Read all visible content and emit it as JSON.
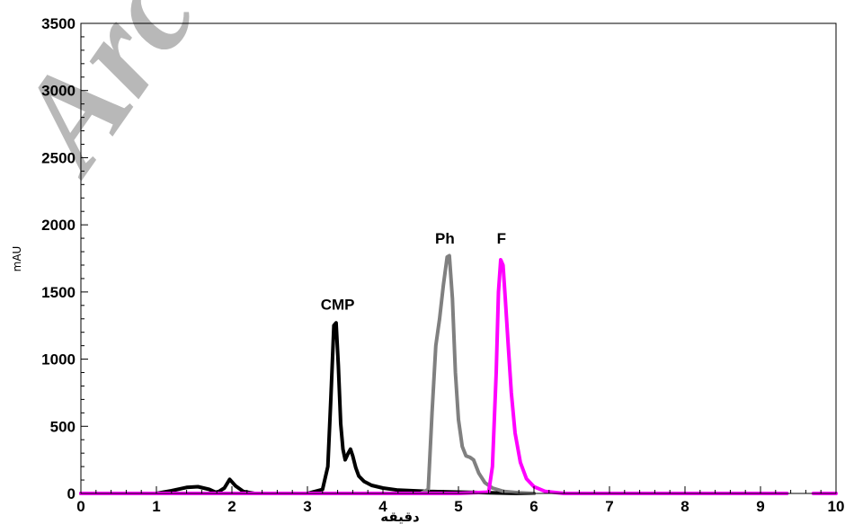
{
  "chart_data": {
    "type": "line",
    "xlabel": "دقیقه",
    "ylabel": "mAU",
    "xlim": [
      0,
      10
    ],
    "ylim": [
      0,
      3500
    ],
    "xticks": [
      "0",
      "1",
      "2",
      "3",
      "4",
      "5",
      "6",
      "7",
      "8",
      "9",
      "10"
    ],
    "yticks": [
      "0",
      "500",
      "1000",
      "1500",
      "2000",
      "2500",
      "3000",
      "3500"
    ],
    "grid": false,
    "watermark": "Arc",
    "annotations": [
      {
        "text": "CMP",
        "x": 3.4,
        "y": 1370
      },
      {
        "text": "Ph",
        "x": 4.82,
        "y": 1860
      },
      {
        "text": "F",
        "x": 5.57,
        "y": 1860
      }
    ],
    "series": [
      {
        "color": "#000000",
        "x": [
          0,
          1.0,
          1.2,
          1.4,
          1.55,
          1.7,
          1.8,
          1.9,
          1.97,
          2.05,
          2.15,
          2.3,
          2.6,
          3.0,
          3.2,
          3.27,
          3.31,
          3.35,
          3.38,
          3.41,
          3.44,
          3.47,
          3.5,
          3.54,
          3.57,
          3.6,
          3.64,
          3.68,
          3.75,
          3.85,
          4.0,
          4.2,
          4.6,
          5.0,
          5.4,
          5.8,
          6.0
        ],
        "y": [
          0,
          0,
          20,
          45,
          50,
          30,
          5,
          40,
          105,
          55,
          15,
          0,
          0,
          0,
          30,
          200,
          700,
          1250,
          1270,
          950,
          520,
          330,
          250,
          300,
          330,
          280,
          190,
          130,
          90,
          60,
          40,
          25,
          15,
          10,
          5,
          0,
          0
        ]
      },
      {
        "color": "#808080",
        "x": [
          4.5,
          4.6,
          4.65,
          4.7,
          4.75,
          4.8,
          4.85,
          4.88,
          4.92,
          4.96,
          5.0,
          5.05,
          5.1,
          5.15,
          5.2,
          5.27,
          5.35,
          5.45,
          5.6,
          5.8,
          6.0
        ],
        "y": [
          0,
          30,
          600,
          1100,
          1300,
          1550,
          1760,
          1770,
          1450,
          900,
          550,
          350,
          280,
          270,
          250,
          150,
          80,
          40,
          15,
          5,
          0
        ]
      },
      {
        "color": "#ff00ff",
        "x": [
          0,
          1.0,
          2.0,
          3.0,
          4.0,
          5.0,
          5.4,
          5.45,
          5.5,
          5.53,
          5.56,
          5.59,
          5.62,
          5.66,
          5.7,
          5.75,
          5.82,
          5.9,
          6.0,
          6.15,
          6.4,
          7.0,
          8.0,
          9.0,
          9.35,
          9.4,
          9.65,
          9.7,
          10.0
        ],
        "y": [
          0,
          0,
          0,
          0,
          0,
          0,
          10,
          200,
          900,
          1500,
          1740,
          1700,
          1450,
          1100,
          750,
          450,
          230,
          110,
          50,
          15,
          0,
          0,
          0,
          0,
          0,
          null,
          null,
          0,
          0
        ]
      }
    ]
  }
}
